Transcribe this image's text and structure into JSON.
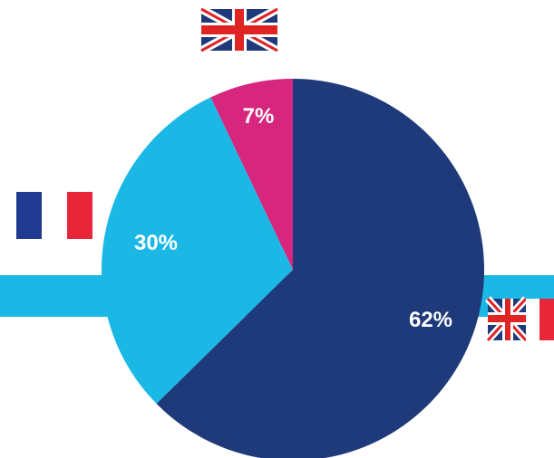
{
  "chart_data": {
    "type": "pie",
    "title": "",
    "labels": [
      "7%",
      "30%",
      "62%"
    ],
    "values": [
      7,
      30,
      62
    ],
    "colors": [
      "#d6267e",
      "#1bb8e6",
      "#1f3a7a"
    ],
    "category_icons": [
      "uk-flag-icon",
      "france-flag-icon",
      "uk-france-flag-icon"
    ]
  },
  "decor": {
    "band_color": "#1bb8e6"
  }
}
